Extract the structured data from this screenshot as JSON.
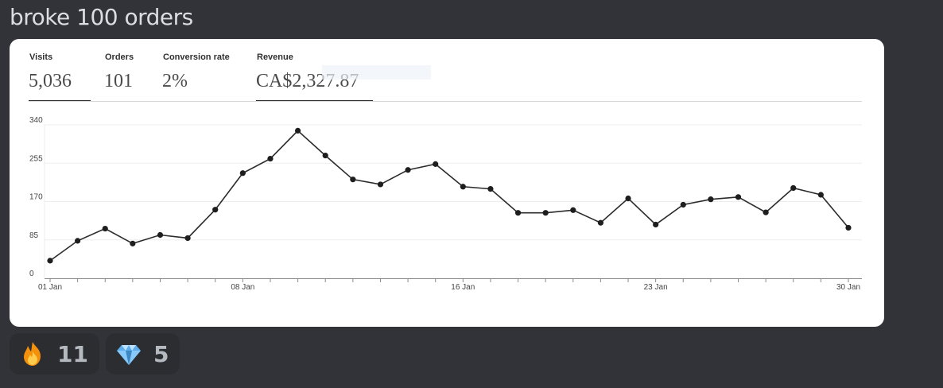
{
  "message": {
    "text": "broke 100 orders"
  },
  "metrics": [
    {
      "label": "Visits",
      "value": "5,036"
    },
    {
      "label": "Orders",
      "value": "101"
    },
    {
      "label": "Conversion rate",
      "value": "2%"
    },
    {
      "label": "Revenue",
      "value": "CA$2,327.87"
    }
  ],
  "chart_data": {
    "type": "line",
    "x": [
      "01 Jan",
      "02 Jan",
      "03 Jan",
      "04 Jan",
      "05 Jan",
      "06 Jan",
      "07 Jan",
      "08 Jan",
      "09 Jan",
      "10 Jan",
      "11 Jan",
      "12 Jan",
      "13 Jan",
      "14 Jan",
      "15 Jan",
      "16 Jan",
      "17 Jan",
      "18 Jan",
      "19 Jan",
      "20 Jan",
      "21 Jan",
      "22 Jan",
      "23 Jan",
      "24 Jan",
      "25 Jan",
      "26 Jan",
      "27 Jan",
      "28 Jan",
      "29 Jan",
      "30 Jan"
    ],
    "values": [
      39,
      83,
      110,
      77,
      96,
      89,
      152,
      233,
      265,
      327,
      272,
      219,
      208,
      240,
      253,
      203,
      198,
      145,
      145,
      151,
      123,
      177,
      119,
      163,
      175,
      180,
      146,
      200,
      185,
      112
    ],
    "ylim": [
      0,
      340
    ],
    "yticks": [
      "0",
      "85",
      "170",
      "255",
      "340"
    ],
    "xticks": [
      "01 Jan",
      "08 Jan",
      "16 Jan",
      "23 Jan",
      "30 Jan"
    ],
    "grid": true,
    "line_color": "#2b2b2b"
  },
  "reactions": [
    {
      "emoji": "fire-icon",
      "count": "11"
    },
    {
      "emoji": "gem-icon",
      "count": "5"
    }
  ]
}
